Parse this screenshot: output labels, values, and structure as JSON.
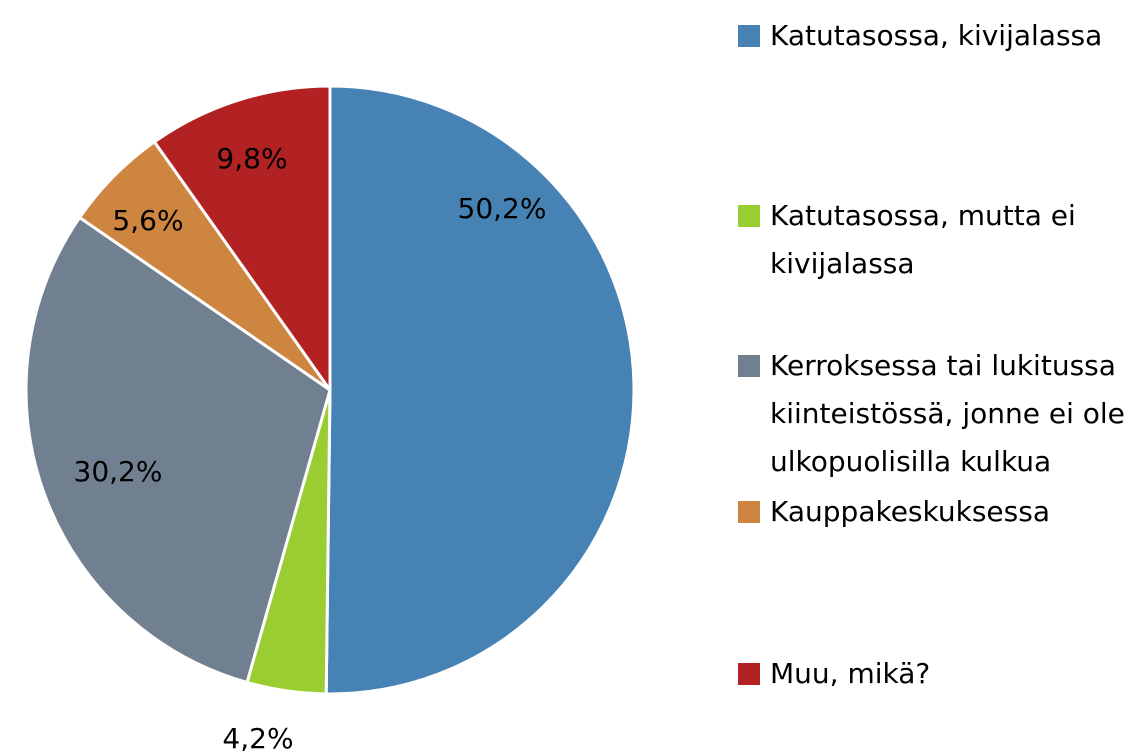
{
  "chart_data": {
    "type": "pie",
    "categories": [
      "Katutasossa, kivijalassa",
      "Katutasossa, mutta ei kivijalassa",
      "Kerroksessa tai lukitussa kiinteistössä, jonne ei ole ulkopuolisilla kulkua",
      "Kauppakeskuksessa",
      "Muu, mikä?"
    ],
    "values": [
      50.2,
      4.2,
      30.2,
      5.6,
      9.8
    ],
    "value_labels": [
      "50,2%",
      "4,2%",
      "30,2%",
      "5,6%",
      "9,8%"
    ],
    "colors": [
      "#4682b4",
      "#9acd32",
      "#708090",
      "#cd853f",
      "#b22222"
    ],
    "legend": "right"
  }
}
